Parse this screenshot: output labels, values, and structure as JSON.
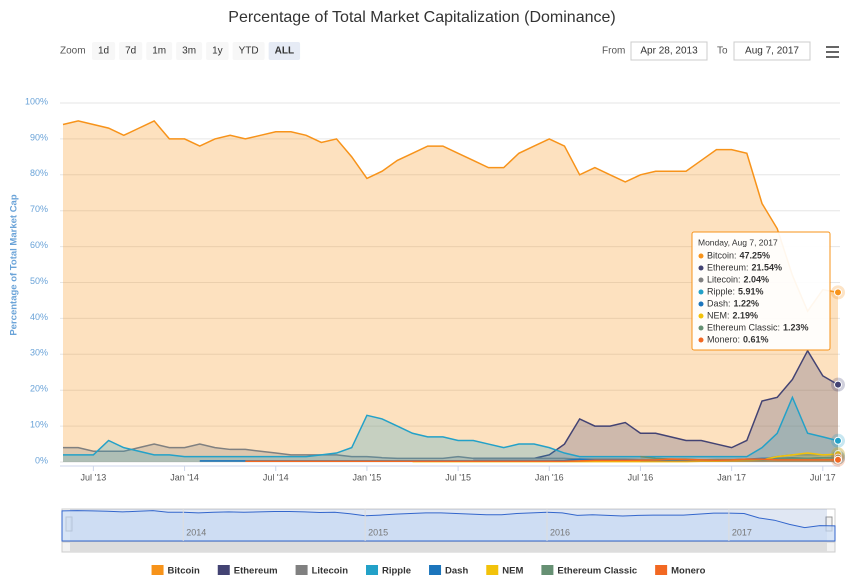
{
  "chart_data": {
    "type": "area",
    "title": "Percentage of Total Market Capitalization (Dominance)",
    "zoom": {
      "label": "Zoom",
      "buttons": [
        "1d",
        "7d",
        "1m",
        "3m",
        "1y",
        "YTD",
        "ALL"
      ],
      "selected": "ALL"
    },
    "range": {
      "from_label": "From",
      "from": "Apr 28, 2013",
      "to_label": "To",
      "to": "Aug 7, 2017"
    },
    "y_label": "Percentage of Total Market Cap",
    "ylim": [
      0,
      100
    ],
    "yticks": [
      {
        "value": 0,
        "label": "0%"
      },
      {
        "value": 10,
        "label": "10%"
      },
      {
        "value": 20,
        "label": "20%"
      },
      {
        "value": 30,
        "label": "30%"
      },
      {
        "value": 40,
        "label": "40%"
      },
      {
        "value": 50,
        "label": "50%"
      },
      {
        "value": 60,
        "label": "60%"
      },
      {
        "value": 70,
        "label": "70%"
      },
      {
        "value": 80,
        "label": "80%"
      },
      {
        "value": 90,
        "label": "90%"
      },
      {
        "value": 100,
        "label": "100%"
      }
    ],
    "grid": true,
    "xlim": [
      "2013-05",
      "2017-08"
    ],
    "xticks": [
      {
        "value": "2013-07",
        "label": "Jul '13"
      },
      {
        "value": "2014-01",
        "label": "Jan '14"
      },
      {
        "value": "2014-07",
        "label": "Jul '14"
      },
      {
        "value": "2015-01",
        "label": "Jan '15"
      },
      {
        "value": "2015-07",
        "label": "Jul '15"
      },
      {
        "value": "2016-01",
        "label": "Jan '16"
      },
      {
        "value": "2016-07",
        "label": "Jul '16"
      },
      {
        "value": "2017-01",
        "label": "Jan '17"
      },
      {
        "value": "2017-07",
        "label": "Jul '17"
      }
    ],
    "x": [
      "2013-05",
      "2013-06",
      "2013-07",
      "2013-08",
      "2013-09",
      "2013-10",
      "2013-11",
      "2013-12",
      "2014-01",
      "2014-02",
      "2014-03",
      "2014-04",
      "2014-05",
      "2014-06",
      "2014-07",
      "2014-08",
      "2014-09",
      "2014-10",
      "2014-11",
      "2014-12",
      "2015-01",
      "2015-02",
      "2015-03",
      "2015-04",
      "2015-05",
      "2015-06",
      "2015-07",
      "2015-08",
      "2015-09",
      "2015-10",
      "2015-11",
      "2015-12",
      "2016-01",
      "2016-02",
      "2016-03",
      "2016-04",
      "2016-05",
      "2016-06",
      "2016-07",
      "2016-08",
      "2016-09",
      "2016-10",
      "2016-11",
      "2016-12",
      "2017-01",
      "2017-02",
      "2017-03",
      "2017-04",
      "2017-05",
      "2017-06",
      "2017-07",
      "2017-08"
    ],
    "series": [
      {
        "name": "Bitcoin",
        "color": "#f7931a",
        "values": [
          94,
          95,
          94,
          93,
          91,
          93,
          95,
          90,
          90,
          88,
          90,
          91,
          90,
          91,
          92,
          92,
          91,
          89,
          90,
          85,
          79,
          81,
          84,
          86,
          88,
          88,
          86,
          84,
          82,
          82,
          86,
          88,
          90,
          88,
          80,
          82,
          80,
          78,
          80,
          81,
          81,
          81,
          84,
          87,
          87,
          86,
          72,
          65,
          52,
          42,
          48,
          47.25
        ]
      },
      {
        "name": "Ethereum",
        "color": "#434373",
        "values": [
          null,
          null,
          null,
          null,
          null,
          null,
          null,
          null,
          null,
          null,
          null,
          null,
          null,
          null,
          null,
          null,
          null,
          null,
          null,
          null,
          null,
          null,
          null,
          null,
          null,
          null,
          null,
          1,
          1,
          1,
          1,
          1,
          2,
          5,
          12,
          10,
          10,
          11,
          8,
          8,
          7,
          6,
          6,
          5,
          4,
          6,
          17,
          18,
          23,
          31,
          24,
          21.54
        ]
      },
      {
        "name": "Litecoin",
        "color": "#808080",
        "values": [
          4,
          4,
          3,
          3,
          3,
          4,
          5,
          4,
          4,
          5,
          4,
          3.5,
          3.5,
          3,
          2.5,
          2,
          2,
          2,
          2,
          1.5,
          1.5,
          1.2,
          1,
          1,
          1,
          1,
          1.5,
          1,
          1,
          1,
          1,
          1,
          1,
          1,
          0.8,
          0.8,
          0.8,
          0.8,
          0.7,
          0.6,
          0.6,
          0.5,
          0.6,
          0.7,
          0.7,
          0.7,
          0.8,
          1.5,
          2,
          2,
          2,
          2.04
        ]
      },
      {
        "name": "Ripple",
        "color": "#23a1c8",
        "values": [
          2,
          2,
          2,
          6,
          4,
          3,
          2,
          2,
          1.5,
          1.5,
          1.5,
          1.5,
          1.5,
          1.5,
          1.5,
          1.5,
          1.5,
          2,
          2.5,
          4,
          13,
          12,
          10,
          8,
          7,
          7,
          6,
          6,
          5,
          4,
          5,
          5,
          4,
          2.5,
          1.5,
          1.5,
          1.5,
          1.5,
          1.5,
          1.5,
          1.5,
          1.5,
          1.5,
          1.5,
          1.5,
          1.5,
          4,
          8,
          18,
          8,
          7,
          5.91
        ]
      },
      {
        "name": "Dash",
        "color": "#1c75bc",
        "values": [
          null,
          null,
          null,
          null,
          null,
          null,
          null,
          null,
          null,
          0.3,
          0.3,
          0.3,
          0.3,
          0.3,
          0.3,
          0.3,
          0.3,
          0.3,
          0.3,
          0.3,
          0.3,
          0.3,
          0.3,
          0.3,
          0.3,
          0.3,
          0.3,
          0.3,
          0.3,
          0.3,
          0.3,
          0.3,
          0.3,
          0.4,
          0.8,
          0.6,
          0.6,
          0.6,
          0.5,
          0.5,
          0.5,
          0.4,
          0.4,
          0.5,
          0.6,
          0.8,
          1,
          1,
          1.2,
          1,
          1.2,
          1.22
        ]
      },
      {
        "name": "NEM",
        "color": "#f2c20a",
        "values": [
          null,
          null,
          null,
          null,
          null,
          null,
          null,
          null,
          null,
          null,
          null,
          null,
          null,
          null,
          null,
          null,
          null,
          null,
          null,
          null,
          null,
          null,
          null,
          0.1,
          0.1,
          0.1,
          0.1,
          0.1,
          0.1,
          0.1,
          0.1,
          0.1,
          0.1,
          0.1,
          0.1,
          0.1,
          0.1,
          0.1,
          0.1,
          0.1,
          0.1,
          0.1,
          0.2,
          0.2,
          0.3,
          0.4,
          0.6,
          1.5,
          2,
          2.5,
          2,
          2.19
        ]
      },
      {
        "name": "Ethereum Classic",
        "color": "#669073",
        "values": [
          null,
          null,
          null,
          null,
          null,
          null,
          null,
          null,
          null,
          null,
          null,
          null,
          null,
          null,
          null,
          null,
          null,
          null,
          null,
          null,
          null,
          null,
          null,
          null,
          null,
          null,
          null,
          null,
          null,
          null,
          null,
          null,
          null,
          null,
          null,
          null,
          null,
          null,
          1.5,
          1,
          0.8,
          0.8,
          0.6,
          0.6,
          0.6,
          0.7,
          0.6,
          0.8,
          1,
          1,
          1.2,
          1.23
        ]
      },
      {
        "name": "Monero",
        "color": "#f26822",
        "values": [
          null,
          null,
          null,
          null,
          null,
          null,
          null,
          null,
          null,
          null,
          null,
          null,
          0.2,
          0.2,
          0.2,
          0.2,
          0.2,
          0.2,
          0.2,
          0.2,
          0.2,
          0.2,
          0.2,
          0.2,
          0.2,
          0.2,
          0.2,
          0.2,
          0.2,
          0.2,
          0.2,
          0.2,
          0.2,
          0.2,
          0.3,
          0.5,
          0.5,
          0.5,
          0.5,
          0.6,
          0.8,
          0.7,
          0.6,
          0.5,
          0.6,
          0.8,
          0.8,
          0.6,
          0.6,
          0.6,
          0.6,
          0.61
        ]
      }
    ],
    "tooltip": {
      "date": "Monday, Aug 7, 2017",
      "items": [
        {
          "label": "Bitcoin:",
          "value": "47.25%"
        },
        {
          "label": "Ethereum:",
          "value": "21.54%"
        },
        {
          "label": "Litecoin:",
          "value": "2.04%"
        },
        {
          "label": "Ripple:",
          "value": "5.91%"
        },
        {
          "label": "Dash:",
          "value": "1.22%"
        },
        {
          "label": "NEM:",
          "value": "2.19%"
        },
        {
          "label": "Ethereum Classic:",
          "value": "1.23%"
        },
        {
          "label": "Monero:",
          "value": "0.61%"
        }
      ]
    },
    "navigator_ticks": [
      {
        "value": "2014-01",
        "label": "2014"
      },
      {
        "value": "2015-01",
        "label": "2015"
      },
      {
        "value": "2016-01",
        "label": "2016"
      },
      {
        "value": "2017-01",
        "label": "2017"
      }
    ]
  }
}
